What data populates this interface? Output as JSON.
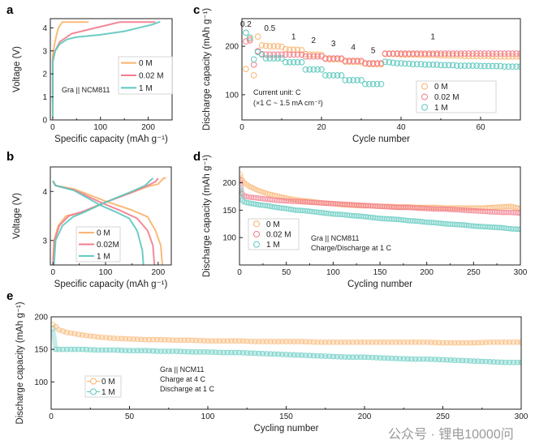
{
  "colors": {
    "0M": "#f9b36b",
    "0.02M": "#f27c8c",
    "1M": "#5cc8be"
  },
  "watermark": "公众号 · 锂电10000问",
  "chart_data": [
    {
      "id": "a",
      "panel_label": "a",
      "type": "line",
      "xlabel": "Specific capacity (mAh g⁻¹)",
      "ylabel": "Voltage (V)",
      "xlim": [
        -5,
        250
      ],
      "ylim": [
        0,
        4.4
      ],
      "xticks": [
        0,
        100,
        200
      ],
      "yticks": [
        0,
        1,
        2,
        3,
        4
      ],
      "annotations": [
        "Gra || NCM811"
      ],
      "legend": {
        "placement": "right",
        "labels": [
          "0 M",
          "0.02 M",
          "1 M"
        ]
      },
      "series": [
        {
          "name": "0 M",
          "color_key": "0M",
          "points": [
            [
              0,
              0.2
            ],
            [
              0,
              2.8
            ],
            [
              3,
              3.2
            ],
            [
              8,
              3.7
            ],
            [
              12,
              4.0
            ],
            [
              20,
              4.25
            ],
            [
              75,
              4.25
            ]
          ]
        },
        {
          "name": "0.02 M",
          "color_key": "0.02M",
          "points": [
            [
              0,
              0.7
            ],
            [
              0,
              2.6
            ],
            [
              5,
              3.0
            ],
            [
              15,
              3.4
            ],
            [
              40,
              3.75
            ],
            [
              80,
              3.95
            ],
            [
              120,
              4.15
            ],
            [
              140,
              4.25
            ],
            [
              215,
              4.25
            ]
          ]
        },
        {
          "name": "1 M",
          "color_key": "1M",
          "points": [
            [
              0,
              0.1
            ],
            [
              0,
              2.5
            ],
            [
              5,
              3.0
            ],
            [
              15,
              3.3
            ],
            [
              30,
              3.5
            ],
            [
              50,
              3.6
            ],
            [
              100,
              3.7
            ],
            [
              150,
              3.85
            ],
            [
              190,
              4.05
            ],
            [
              210,
              4.15
            ],
            [
              225,
              4.27
            ]
          ]
        }
      ]
    },
    {
      "id": "b",
      "panel_label": "b",
      "type": "line",
      "xlabel": "Specific capacity (mAh g⁻¹)",
      "ylabel": "Voltage (V)",
      "xlim": [
        -5,
        225
      ],
      "ylim": [
        2.5,
        4.5
      ],
      "xticks": [
        0,
        100,
        200
      ],
      "yticks": [
        3,
        4
      ],
      "annotations": [],
      "legend": {
        "placement": "bottom-center",
        "labels": [
          "0 M",
          "0.02M",
          "1 M"
        ]
      },
      "series": [
        {
          "name": "0 M charge",
          "color_key": "0M",
          "points": [
            [
              0,
              2.6
            ],
            [
              2,
              3.0
            ],
            [
              10,
              3.3
            ],
            [
              25,
              3.5
            ],
            [
              50,
              3.56
            ],
            [
              100,
              3.78
            ],
            [
              150,
              3.98
            ],
            [
              180,
              4.1
            ],
            [
              200,
              4.15
            ],
            [
              210,
              4.27
            ],
            [
              215,
              4.27
            ]
          ]
        },
        {
          "name": "0 M discharge",
          "color_key": "0M",
          "points": [
            [
              0,
              4.2
            ],
            [
              5,
              4.12
            ],
            [
              40,
              4.05
            ],
            [
              100,
              3.8
            ],
            [
              150,
              3.62
            ],
            [
              180,
              3.48
            ],
            [
              195,
              3.2
            ],
            [
              205,
              2.9
            ],
            [
              208,
              2.5
            ]
          ]
        },
        {
          "name": "0.02M charge",
          "color_key": "0.02M",
          "points": [
            [
              0,
              2.5
            ],
            [
              3,
              3.0
            ],
            [
              12,
              3.3
            ],
            [
              30,
              3.5
            ],
            [
              60,
              3.6
            ],
            [
              100,
              3.78
            ],
            [
              150,
              3.98
            ],
            [
              180,
              4.12
            ],
            [
              195,
              4.2
            ],
            [
              200,
              4.27
            ]
          ]
        },
        {
          "name": "0.02M discharge",
          "color_key": "0.02M",
          "points": [
            [
              0,
              4.2
            ],
            [
              5,
              4.12
            ],
            [
              40,
              4.03
            ],
            [
              90,
              3.78
            ],
            [
              130,
              3.6
            ],
            [
              160,
              3.45
            ],
            [
              180,
              3.2
            ],
            [
              190,
              2.9
            ],
            [
              193,
              2.5
            ]
          ]
        },
        {
          "name": "1 M charge",
          "color_key": "1M",
          "points": [
            [
              2,
              2.5
            ],
            [
              5,
              3.0
            ],
            [
              18,
              3.3
            ],
            [
              38,
              3.48
            ],
            [
              60,
              3.58
            ],
            [
              100,
              3.78
            ],
            [
              150,
              4.0
            ],
            [
              175,
              4.12
            ],
            [
              190,
              4.27
            ]
          ]
        },
        {
          "name": "1 M discharge",
          "color_key": "1M",
          "points": [
            [
              0,
              4.22
            ],
            [
              5,
              4.12
            ],
            [
              40,
              4.02
            ],
            [
              90,
              3.72
            ],
            [
              120,
              3.58
            ],
            [
              145,
              3.45
            ],
            [
              160,
              3.2
            ],
            [
              170,
              2.8
            ],
            [
              172,
              2.5
            ]
          ]
        }
      ]
    },
    {
      "id": "c",
      "panel_label": "c",
      "type": "scatter",
      "xlabel": "Cycle number",
      "ylabel": "Discharge capacity (mAh g⁻¹)",
      "xlim": [
        0,
        70
      ],
      "ylim": [
        48,
        257
      ],
      "xticks": [
        0,
        20,
        40,
        60
      ],
      "yticks": [
        100,
        200
      ],
      "annotations": [
        "Current unit: C",
        "(×1 C ~ 1.5 mA cm⁻²)"
      ],
      "rate_labels": [
        "0.2",
        "0.5",
        "1",
        "2",
        "3",
        "4",
        "5",
        "1"
      ],
      "legend": {
        "placement": "bottom-right",
        "labels": [
          "0 M",
          "0.02 M",
          "1 M"
        ]
      },
      "x_start": 1,
      "series": [
        {
          "name": "0 M",
          "color_key": "0M",
          "values": [
            153,
            215,
            140,
            220,
            202,
            201,
            200,
            200,
            200,
            199,
            194,
            193,
            193,
            193,
            192,
            184,
            183,
            183,
            183,
            182,
            174,
            173,
            173,
            173,
            173,
            168,
            168,
            168,
            168,
            167,
            164,
            163,
            163,
            163,
            163,
            184,
            184,
            184,
            184,
            183,
            183,
            183,
            183,
            183,
            182,
            182,
            182,
            182,
            182,
            181,
            181,
            181,
            181,
            181,
            181,
            180,
            180,
            180,
            180,
            180,
            180,
            180,
            179,
            179,
            179,
            179,
            179,
            179,
            179,
            179
          ]
        },
        {
          "name": "0.02 M",
          "color_key": "0.02M",
          "values": [
            210,
            212,
            162,
            190,
            184,
            183,
            183,
            183,
            183,
            183,
            183,
            183,
            183,
            183,
            183,
            179,
            179,
            179,
            179,
            179,
            175,
            175,
            175,
            175,
            175,
            170,
            170,
            170,
            170,
            170,
            165,
            165,
            165,
            165,
            165,
            185,
            185,
            185,
            185,
            185,
            185,
            185,
            185,
            185,
            185,
            185,
            185,
            185,
            185,
            185,
            185,
            185,
            185,
            185,
            185,
            185,
            185,
            185,
            185,
            185,
            185,
            185,
            185,
            185,
            185,
            185,
            185,
            185,
            185,
            185
          ]
        },
        {
          "name": "1 M",
          "color_key": "1M",
          "values": [
            228,
            218,
            173,
            188,
            183,
            175,
            175,
            175,
            175,
            175,
            167,
            167,
            167,
            167,
            167,
            152,
            152,
            152,
            152,
            152,
            140,
            140,
            140,
            140,
            140,
            130,
            130,
            130,
            130,
            130,
            122,
            122,
            122,
            122,
            122,
            168,
            167,
            166,
            165,
            165,
            164,
            164,
            163,
            163,
            163,
            162,
            162,
            162,
            162,
            161,
            161,
            161,
            161,
            160,
            160,
            160,
            160,
            160,
            160,
            159,
            159,
            159,
            159,
            159,
            159,
            158,
            158,
            158,
            158,
            158
          ]
        }
      ]
    },
    {
      "id": "d",
      "panel_label": "d",
      "type": "scatter",
      "xlabel": "Cycling number",
      "ylabel": "Discharge capacity (mAh g⁻¹)",
      "xlim": [
        0,
        300
      ],
      "ylim": [
        50,
        229
      ],
      "xticks": [
        0,
        50,
        100,
        150,
        200,
        250,
        300
      ],
      "yticks": [
        100,
        150,
        200
      ],
      "annotations": [
        "Gra || NCM811",
        "Charge/Discharge at 1 C"
      ],
      "legend": {
        "placement": "bottom-left",
        "labels": [
          "0 M",
          "0.02 M",
          "1 M"
        ]
      },
      "x": [
        1,
        3,
        5,
        10,
        20,
        30,
        40,
        50,
        60,
        70,
        80,
        90,
        100,
        110,
        120,
        130,
        140,
        150,
        160,
        170,
        180,
        190,
        200,
        210,
        220,
        230,
        240,
        250,
        260,
        270,
        280,
        290,
        300
      ],
      "series": [
        {
          "name": "0 M",
          "color_key": "0M",
          "values": [
            215,
            205,
            200,
            194,
            186,
            180,
            176,
            172,
            169,
            167,
            165,
            163,
            162,
            160,
            159,
            158,
            158,
            157,
            157,
            156,
            156,
            155,
            155,
            155,
            154,
            154,
            154,
            154,
            154,
            155,
            156,
            157,
            153
          ]
        },
        {
          "name": "0.02 M",
          "color_key": "0.02M",
          "values": [
            205,
            180,
            176,
            174,
            172,
            170,
            168,
            167,
            166,
            165,
            164,
            163,
            162,
            161,
            160,
            159,
            158,
            157,
            156,
            155,
            155,
            154,
            153,
            152,
            152,
            151,
            150,
            149,
            148,
            147,
            146,
            146,
            145
          ]
        },
        {
          "name": "1 M",
          "color_key": "1M",
          "values": [
            190,
            168,
            165,
            163,
            160,
            158,
            155,
            153,
            150,
            149,
            147,
            145,
            143,
            142,
            140,
            139,
            137,
            135,
            134,
            133,
            131,
            130,
            128,
            127,
            125,
            124,
            123,
            121,
            120,
            119,
            118,
            116,
            115
          ]
        }
      ]
    },
    {
      "id": "e",
      "panel_label": "e",
      "type": "scatter",
      "xlabel": "Cycling number",
      "ylabel": "Discharge capacity (mAh g⁻¹)",
      "xlim": [
        0,
        300
      ],
      "ylim": [
        58,
        200
      ],
      "xticks": [
        0,
        50,
        100,
        150,
        200,
        250,
        300
      ],
      "yticks": [
        100,
        150,
        200
      ],
      "annotations": [
        "Gra || NCM11",
        "Charge at      4 C",
        "Discharge at 1 C"
      ],
      "legend": {
        "placement": "bottom-left",
        "labels": [
          "0 M",
          "1 M"
        ]
      },
      "x": [
        1,
        3,
        5,
        10,
        20,
        30,
        40,
        50,
        60,
        70,
        80,
        90,
        100,
        110,
        120,
        130,
        140,
        150,
        160,
        170,
        180,
        190,
        200,
        210,
        220,
        230,
        240,
        250,
        260,
        270,
        280,
        290,
        300
      ],
      "series": [
        {
          "name": "0 M",
          "color_key": "0M",
          "values": [
            188,
            185,
            180,
            176,
            172,
            169,
            167,
            166,
            165,
            165,
            164,
            164,
            163,
            163,
            163,
            162,
            162,
            162,
            162,
            161,
            161,
            161,
            161,
            161,
            161,
            161,
            161,
            160,
            160,
            160,
            161,
            161,
            161
          ]
        },
        {
          "name": "1 M",
          "color_key": "1M",
          "values": [
            182,
            150,
            150,
            150,
            150,
            149,
            149,
            148,
            148,
            147,
            147,
            146,
            146,
            145,
            145,
            144,
            143,
            142,
            141,
            140,
            139,
            138,
            138,
            137,
            136,
            135,
            135,
            134,
            133,
            132,
            131,
            130,
            130
          ]
        }
      ]
    }
  ]
}
